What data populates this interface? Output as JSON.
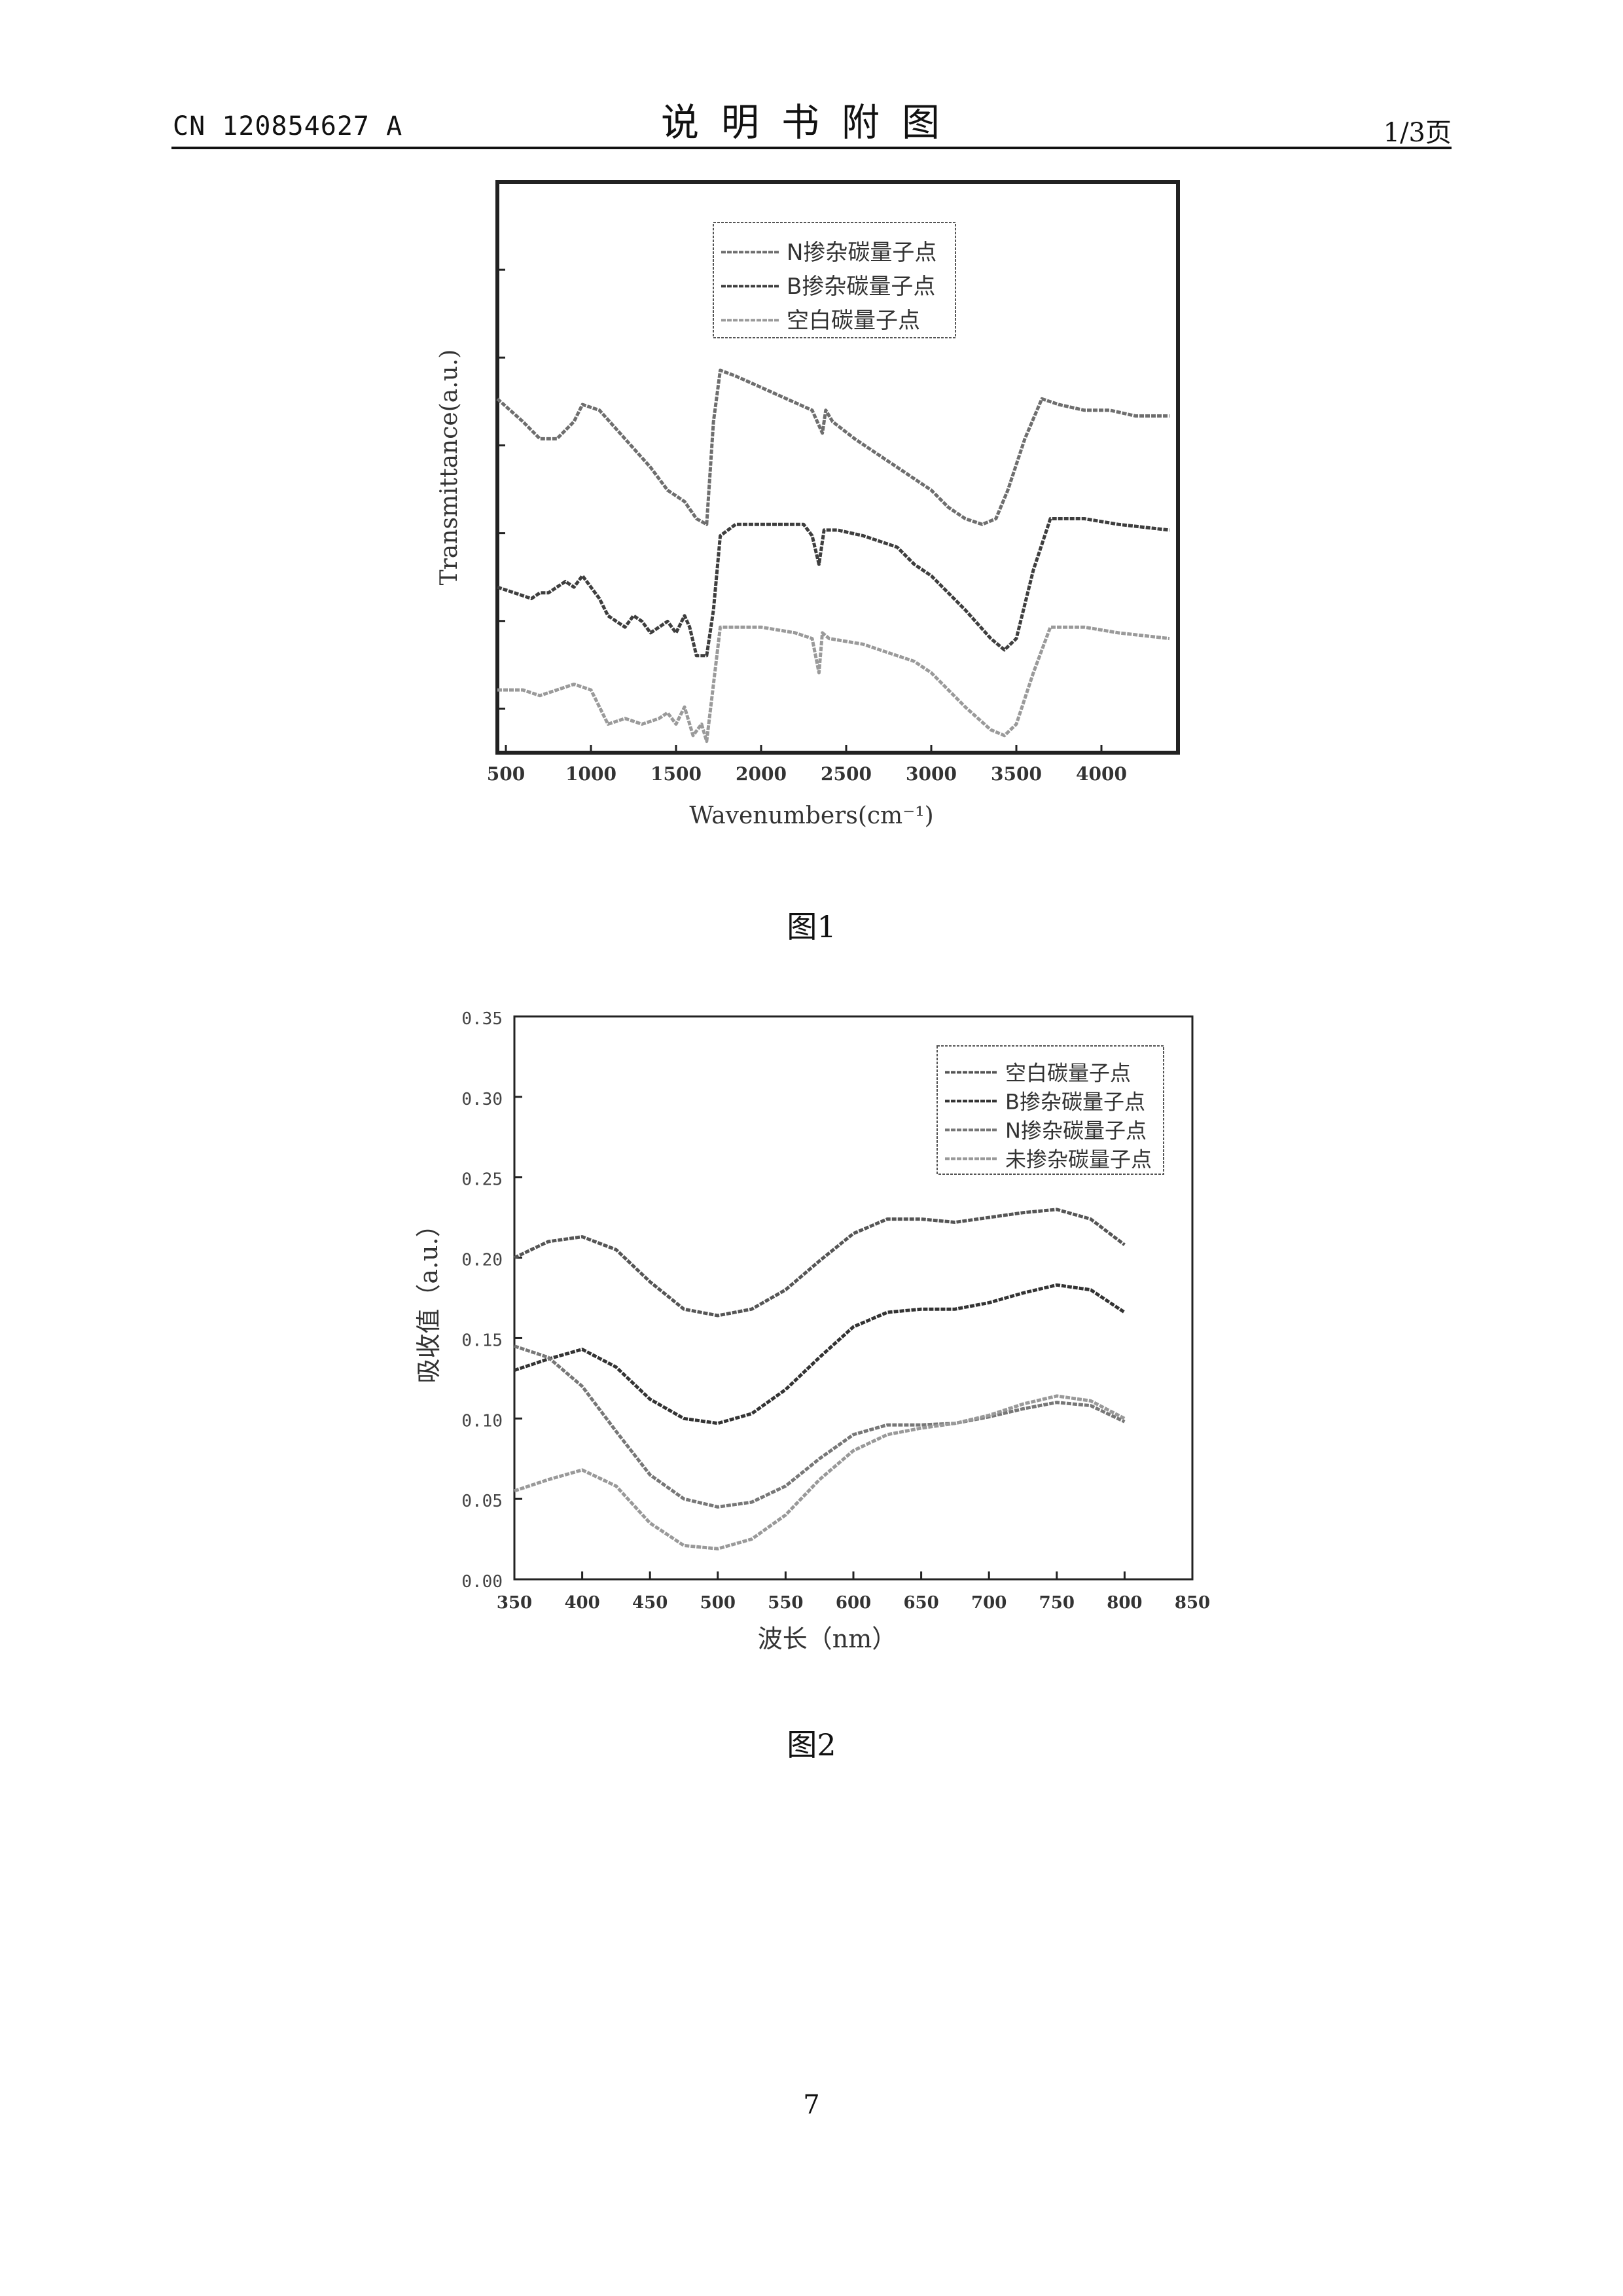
{
  "header": {
    "doc_number": "CN 120854627 A",
    "section_title": "说明书附图",
    "page_of": "1/3页"
  },
  "figures": [
    {
      "caption": "图1"
    },
    {
      "caption": "图2"
    }
  ],
  "page_number": "7",
  "chart_data": [
    {
      "type": "line",
      "title": "",
      "xlabel": "Wavenumbers(cm⁻¹)",
      "ylabel": "Transmittance(a.u.)",
      "xlim": [
        450,
        4450
      ],
      "ylim": [
        0,
        1
      ],
      "x_ticks": [
        500,
        1000,
        1500,
        2000,
        2500,
        3000,
        3500,
        4000
      ],
      "y_tick_labels": false,
      "grid": false,
      "legend_position": "top-center",
      "legend": [
        "N掺杂碳量子点",
        "B掺杂碳量子点",
        "空白碳量子点"
      ],
      "series": [
        {
          "name": "N掺杂碳量子点",
          "color": "#6e6e6e",
          "x": [
            450,
            600,
            700,
            800,
            900,
            950,
            1050,
            1200,
            1350,
            1450,
            1550,
            1620,
            1680,
            1720,
            1760,
            1850,
            2000,
            2150,
            2300,
            2360,
            2380,
            2420,
            2550,
            2700,
            2850,
            3000,
            3100,
            3200,
            3300,
            3380,
            3450,
            3550,
            3650,
            3750,
            3900,
            4050,
            4200,
            4400
          ],
          "y": [
            0.62,
            0.58,
            0.55,
            0.55,
            0.58,
            0.61,
            0.6,
            0.55,
            0.5,
            0.46,
            0.44,
            0.41,
            0.4,
            0.58,
            0.67,
            0.66,
            0.64,
            0.62,
            0.6,
            0.56,
            0.6,
            0.58,
            0.55,
            0.52,
            0.49,
            0.46,
            0.43,
            0.41,
            0.4,
            0.41,
            0.46,
            0.55,
            0.62,
            0.61,
            0.6,
            0.6,
            0.59,
            0.59
          ]
        },
        {
          "name": "B掺杂碳量子点",
          "color": "#3e3e3e",
          "x": [
            450,
            550,
            650,
            700,
            750,
            850,
            900,
            950,
            1050,
            1100,
            1200,
            1250,
            1300,
            1350,
            1400,
            1450,
            1500,
            1550,
            1580,
            1620,
            1680,
            1720,
            1760,
            1850,
            2000,
            2150,
            2250,
            2300,
            2340,
            2370,
            2390,
            2450,
            2600,
            2800,
            2900,
            3000,
            3200,
            3350,
            3430,
            3500,
            3600,
            3700,
            3900,
            4100,
            4400
          ],
          "y": [
            0.29,
            0.28,
            0.27,
            0.28,
            0.28,
            0.3,
            0.29,
            0.31,
            0.27,
            0.24,
            0.22,
            0.24,
            0.23,
            0.21,
            0.22,
            0.23,
            0.21,
            0.24,
            0.22,
            0.17,
            0.17,
            0.25,
            0.38,
            0.4,
            0.4,
            0.4,
            0.4,
            0.38,
            0.33,
            0.39,
            0.39,
            0.39,
            0.38,
            0.36,
            0.33,
            0.31,
            0.25,
            0.2,
            0.18,
            0.2,
            0.32,
            0.41,
            0.41,
            0.4,
            0.39
          ]
        },
        {
          "name": "空白碳量子点",
          "color": "#9a9a9a",
          "x": [
            450,
            600,
            700,
            800,
            900,
            1000,
            1050,
            1100,
            1200,
            1300,
            1400,
            1450,
            1500,
            1550,
            1600,
            1650,
            1680,
            1720,
            1760,
            1850,
            2000,
            2200,
            2300,
            2340,
            2360,
            2400,
            2600,
            2800,
            2900,
            3000,
            3200,
            3350,
            3430,
            3500,
            3600,
            3700,
            3900,
            4100,
            4400
          ],
          "y": [
            0.11,
            0.11,
            0.1,
            0.11,
            0.12,
            0.11,
            0.08,
            0.05,
            0.06,
            0.05,
            0.06,
            0.07,
            0.05,
            0.08,
            0.03,
            0.05,
            0.02,
            0.12,
            0.22,
            0.22,
            0.22,
            0.21,
            0.2,
            0.14,
            0.21,
            0.2,
            0.19,
            0.17,
            0.16,
            0.14,
            0.08,
            0.04,
            0.03,
            0.05,
            0.14,
            0.22,
            0.22,
            0.21,
            0.2
          ]
        }
      ]
    },
    {
      "type": "line",
      "title": "",
      "xlabel": "波长（nm）",
      "ylabel": "吸收值（a.u.）",
      "xlim": [
        350,
        850
      ],
      "ylim": [
        0,
        0.35
      ],
      "x_ticks": [
        350,
        400,
        450,
        500,
        550,
        600,
        650,
        700,
        750,
        800,
        850
      ],
      "y_ticks": [
        0.0,
        0.05,
        0.1,
        0.15,
        0.2,
        0.25,
        0.3,
        0.35
      ],
      "grid": false,
      "legend_position": "top-right",
      "legend": [
        "空白碳量子点",
        "B掺杂碳量子点",
        "N掺杂碳量子点",
        "未掺杂碳量子点"
      ],
      "series": [
        {
          "name": "空白碳量子点",
          "color": "#555555",
          "x": [
            350,
            375,
            400,
            425,
            450,
            475,
            500,
            525,
            550,
            575,
            600,
            625,
            650,
            675,
            700,
            725,
            750,
            775,
            800
          ],
          "y": [
            0.2,
            0.21,
            0.213,
            0.205,
            0.185,
            0.168,
            0.164,
            0.168,
            0.18,
            0.198,
            0.215,
            0.224,
            0.224,
            0.222,
            0.225,
            0.228,
            0.23,
            0.224,
            0.208
          ]
        },
        {
          "name": "B掺杂碳量子点",
          "color": "#333333",
          "x": [
            350,
            375,
            400,
            425,
            450,
            475,
            500,
            525,
            550,
            575,
            600,
            625,
            650,
            675,
            700,
            725,
            750,
            775,
            800
          ],
          "y": [
            0.13,
            0.137,
            0.143,
            0.132,
            0.112,
            0.1,
            0.097,
            0.103,
            0.118,
            0.138,
            0.157,
            0.166,
            0.168,
            0.168,
            0.172,
            0.178,
            0.183,
            0.18,
            0.166
          ]
        },
        {
          "name": "N掺杂碳量子点",
          "color": "#777777",
          "x": [
            350,
            375,
            400,
            425,
            450,
            475,
            500,
            525,
            550,
            575,
            600,
            625,
            650,
            675,
            700,
            725,
            750,
            775,
            800
          ],
          "y": [
            0.145,
            0.138,
            0.12,
            0.092,
            0.065,
            0.05,
            0.045,
            0.048,
            0.058,
            0.075,
            0.09,
            0.096,
            0.096,
            0.097,
            0.101,
            0.106,
            0.11,
            0.108,
            0.098
          ]
        },
        {
          "name": "未掺杂碳量子点",
          "color": "#999999",
          "x": [
            350,
            375,
            400,
            425,
            450,
            475,
            500,
            525,
            550,
            575,
            600,
            625,
            650,
            675,
            700,
            725,
            750,
            775,
            800
          ],
          "y": [
            0.055,
            0.062,
            0.068,
            0.058,
            0.035,
            0.021,
            0.019,
            0.025,
            0.04,
            0.062,
            0.08,
            0.09,
            0.094,
            0.097,
            0.102,
            0.109,
            0.114,
            0.111,
            0.1
          ]
        }
      ]
    }
  ]
}
